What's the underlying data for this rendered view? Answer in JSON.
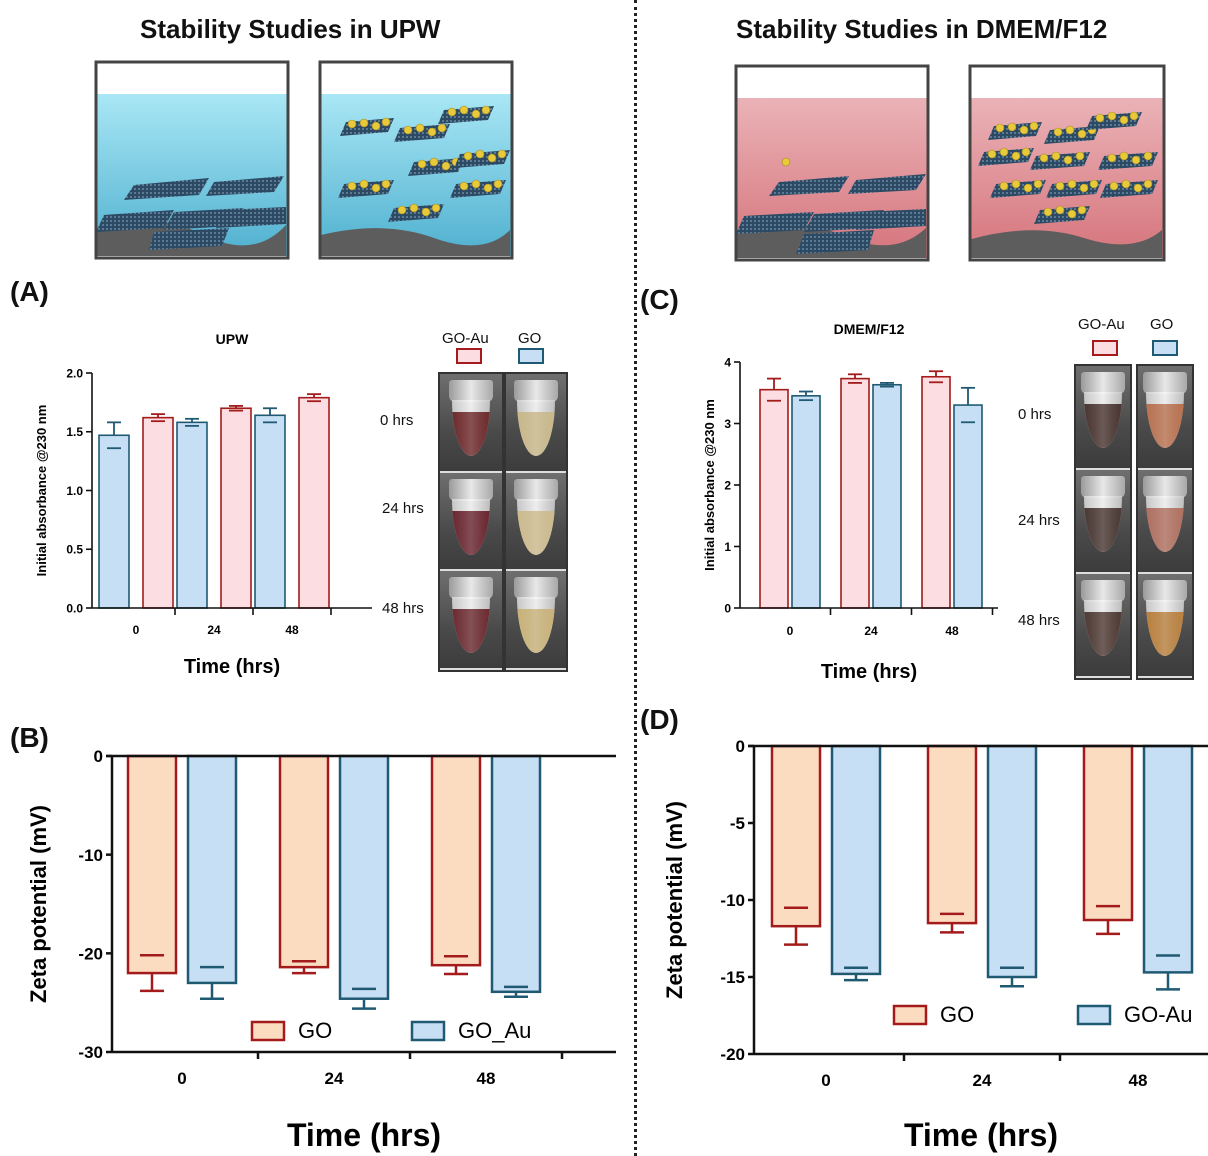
{
  "headers": {
    "left": "Stability Studies in UPW",
    "right": "Stability Studies in DMEM/F12"
  },
  "panel_letters": {
    "A": "(A)",
    "B": "(B)",
    "C": "(C)",
    "D": "(D)"
  },
  "photos": {
    "A": {
      "columns": [
        "GO-Au",
        "GO"
      ],
      "rows": [
        "0 hrs",
        "24 hrs",
        "48 hrs"
      ],
      "colors": {
        "GO-Au": [
          "#6e2a2c",
          "#6a2630",
          "#6b2a30"
        ],
        "GO": [
          "#c8b88a",
          "#cdbb8e",
          "#c9b27a"
        ]
      }
    },
    "C": {
      "columns": [
        "GO-Au",
        "GO"
      ],
      "rows": [
        "0 hrs",
        "24 hrs",
        "48 hrs"
      ],
      "colors": {
        "GO-Au": [
          "#4a3530",
          "#4a3833",
          "#4f3a34"
        ],
        "GO": [
          "#b87250",
          "#b07060",
          "#b9803e"
        ]
      }
    }
  },
  "colors": {
    "red_edge": "#a31b1b",
    "red_fill": "#fcdde2",
    "blue_edge": "#1f5a72",
    "blue_fill": "#c7dff5",
    "orange_fill": "#fcdcc0",
    "blue_fill_dark": "#c4dbf5",
    "water": "#a8e4f3",
    "media": "#e7a9ae"
  },
  "chart_data": [
    {
      "id": "A",
      "type": "bar",
      "title": "UPW",
      "xlabel": "Time (hrs)",
      "ylabel": "Initial absorbance @230 nm",
      "categories": [
        "0",
        "24",
        "48"
      ],
      "ylim": [
        0,
        2.0
      ],
      "yticks": [
        "0.0",
        "0.5",
        "1.0",
        "1.5",
        "2.0"
      ],
      "legend": "none",
      "series": [
        {
          "values": [
            1.47,
            1.58,
            1.64
          ],
          "errors": [
            0.11,
            0.03,
            0.06
          ],
          "color": "blue",
          "offset": -1
        },
        {
          "values": [
            1.62,
            1.7,
            1.79
          ],
          "errors": [
            0.03,
            0.02,
            0.03
          ],
          "color": "red",
          "offset": 1
        }
      ]
    },
    {
      "id": "B",
      "type": "bar",
      "title": "",
      "xlabel": "Time (hrs)",
      "ylabel": "Zeta potential (mV)",
      "categories": [
        "0",
        "24",
        "48"
      ],
      "ylim": [
        -30,
        0
      ],
      "yticks": [
        "-30",
        "-20",
        "-10",
        "0"
      ],
      "legend": "bottom",
      "series": [
        {
          "name": "GO",
          "values": [
            -22.0,
            -21.4,
            -21.2
          ],
          "errors": [
            1.8,
            0.6,
            0.9
          ],
          "color": "orange"
        },
        {
          "name": "GO_Au",
          "values": [
            -23.0,
            -24.6,
            -23.9
          ],
          "errors": [
            1.6,
            1.0,
            0.5
          ],
          "color": "blue"
        }
      ]
    },
    {
      "id": "C",
      "type": "bar",
      "title": "DMEM/F12",
      "xlabel": "Time (hrs)",
      "ylabel": "Initial absorbance @230 nm",
      "categories": [
        "0",
        "24",
        "48"
      ],
      "ylim": [
        0,
        4
      ],
      "yticks": [
        "0",
        "1",
        "2",
        "3",
        "4"
      ],
      "legend": "none",
      "series": [
        {
          "values": [
            3.55,
            3.73,
            3.76
          ],
          "errors": [
            0.18,
            0.07,
            0.09
          ],
          "color": "red",
          "offset": -1
        },
        {
          "values": [
            3.45,
            3.63,
            3.3
          ],
          "errors": [
            0.07,
            0.03,
            0.28
          ],
          "color": "blue",
          "offset": 1
        }
      ]
    },
    {
      "id": "D",
      "type": "bar",
      "title": "",
      "xlabel": "Time (hrs)",
      "ylabel": "Zeta potential (mV)",
      "categories": [
        "0",
        "24",
        "48"
      ],
      "ylim": [
        -20,
        0
      ],
      "yticks": [
        "-20",
        "-15",
        "-10",
        "-5",
        "0"
      ],
      "legend": "bottom",
      "series": [
        {
          "name": "GO",
          "values": [
            -11.7,
            -11.5,
            -11.3
          ],
          "errors": [
            1.2,
            0.6,
            0.9
          ],
          "color": "orange"
        },
        {
          "name": "GO-Au",
          "values": [
            -14.8,
            -15.0,
            -14.7
          ],
          "errors": [
            0.4,
            0.6,
            1.1
          ],
          "color": "blue"
        }
      ]
    }
  ]
}
